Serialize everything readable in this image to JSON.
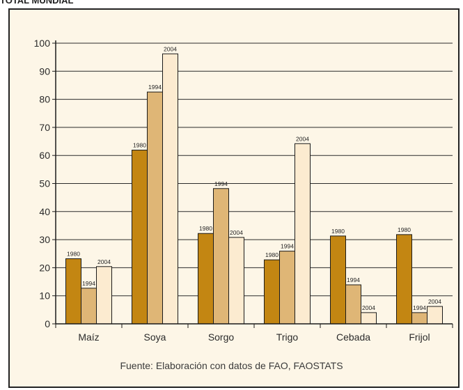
{
  "header_fragment": "TOTAL MUNDIAL",
  "source": "Fuente: Elaboración con datos de FAO, FAOSTATS",
  "colors": {
    "s1980": "#c38612",
    "s1994": "#dfb676",
    "s2004": "#fcebd0",
    "outline": "#1a1a1a",
    "panel": "#fdf6e7"
  },
  "chart_data": {
    "type": "bar",
    "title": "",
    "xlabel": "",
    "ylabel": "",
    "ylim": [
      0,
      100
    ],
    "yticks": [
      0,
      10,
      20,
      30,
      40,
      50,
      60,
      70,
      80,
      90,
      100
    ],
    "categories": [
      "Maíz",
      "Soya",
      "Sorgo",
      "Trigo",
      "Cebada",
      "Frijol"
    ],
    "series": [
      {
        "name": "1980",
        "values": [
          23.2,
          61.9,
          32.2,
          22.8,
          31.3,
          31.8
        ]
      },
      {
        "name": "1994",
        "values": [
          12.7,
          82.6,
          48.2,
          25.9,
          13.9,
          4.0
        ]
      },
      {
        "name": "2004",
        "values": [
          20.4,
          96.2,
          30.8,
          64.2,
          4.0,
          6.2
        ]
      }
    ],
    "grid": true,
    "legend": "none"
  }
}
